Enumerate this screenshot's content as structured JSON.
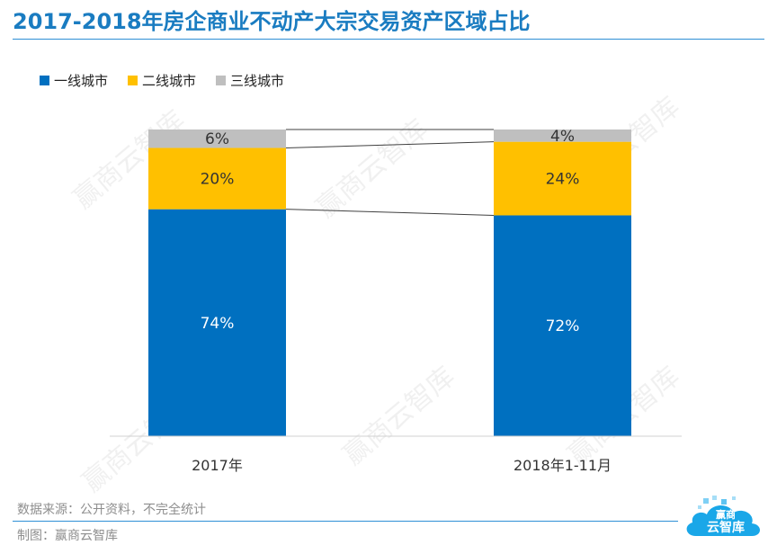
{
  "title": "2017-2018年房企商业不动产大宗交易资产区域占比",
  "source": "数据来源：公开资料，不完全统计",
  "maker": "制图：赢商云智库",
  "logo": {
    "line1": "赢商",
    "line2": "云智库"
  },
  "watermark": "赢商云智库",
  "colors": {
    "tier1": "#0070c0",
    "tier2": "#ffc000",
    "tier3": "#bfbfbf",
    "accent": "#1a7cc1"
  },
  "chart_data": {
    "type": "bar",
    "stacked": true,
    "normalized": true,
    "categories": [
      "2017年",
      "2018年1-11月"
    ],
    "series": [
      {
        "name": "一线城市",
        "values": [
          74,
          72
        ],
        "labels": [
          "74%",
          "72%"
        ],
        "color": "#0070c0"
      },
      {
        "name": "二线城市",
        "values": [
          20,
          24
        ],
        "labels": [
          "20%",
          "24%"
        ],
        "color": "#ffc000"
      },
      {
        "name": "三线城市",
        "values": [
          6,
          4
        ],
        "labels": [
          "6%",
          "4%"
        ],
        "color": "#bfbfbf"
      }
    ],
    "ylim": [
      0,
      100
    ],
    "grid": false,
    "legend": "top-left",
    "series_lines": true
  }
}
